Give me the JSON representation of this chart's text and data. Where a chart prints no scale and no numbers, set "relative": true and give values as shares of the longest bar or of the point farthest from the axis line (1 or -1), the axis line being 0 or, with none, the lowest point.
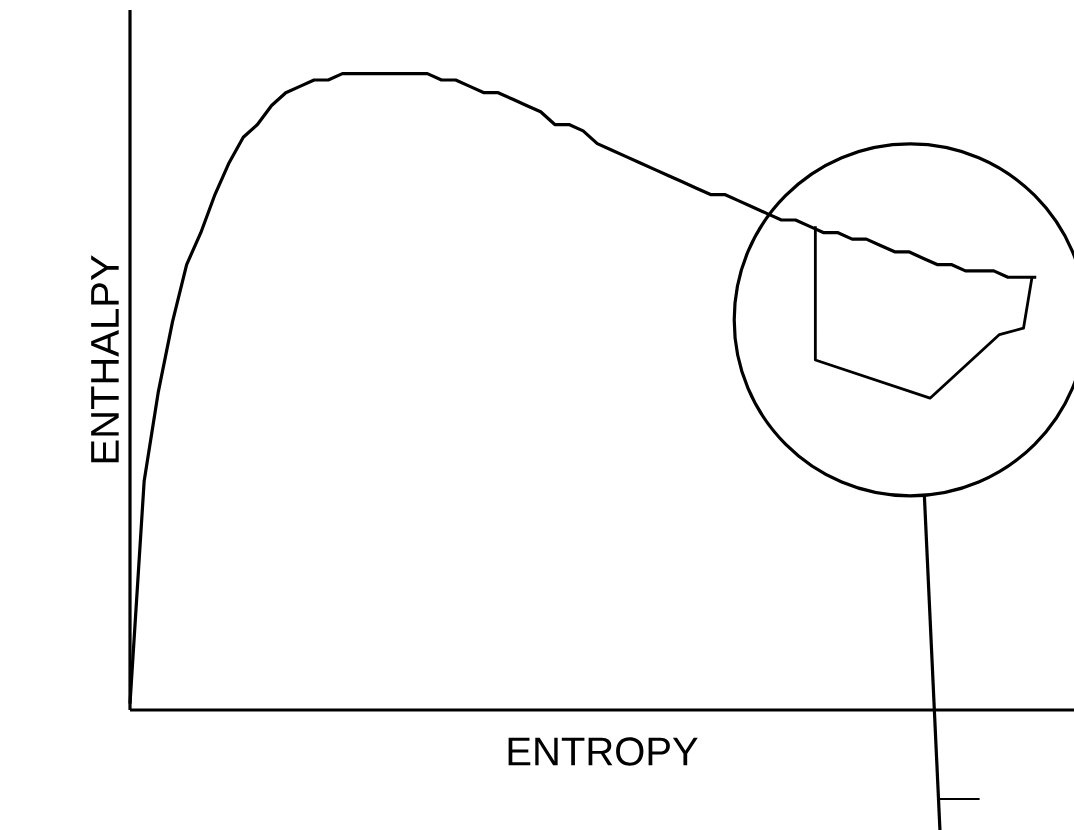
{
  "chart_data": {
    "type": "line",
    "relative": true,
    "xlabel": "ENTROPY",
    "ylabel": "ENTHALPY",
    "categories": [
      null,
      null,
      null,
      null,
      null,
      null,
      null,
      null,
      null,
      null,
      null,
      null,
      null,
      null,
      null,
      null,
      null,
      null,
      null,
      null,
      null,
      null,
      null,
      null,
      null,
      null,
      null,
      null,
      null,
      null,
      null,
      null,
      null,
      null,
      null,
      null,
      null,
      null,
      null,
      null,
      null,
      null,
      null,
      null,
      null,
      null,
      null,
      null,
      null,
      null,
      null,
      null,
      null,
      null,
      null,
      null,
      null,
      null,
      null,
      null,
      null,
      null,
      null,
      null,
      null
    ],
    "series": [
      {
        "color": "#000000",
        "values": [
          0.01,
          0.36,
          0.5,
          0.61,
          0.7,
          0.75,
          0.81,
          0.86,
          0.9,
          0.92,
          0.95,
          0.97,
          0.98,
          0.99,
          0.99,
          1.0,
          1.0,
          1.0,
          1.0,
          1.0,
          1.0,
          1.0,
          0.99,
          0.99,
          0.98,
          0.97,
          0.97,
          0.96,
          0.95,
          0.94,
          0.92,
          0.92,
          0.91,
          0.89,
          0.88,
          0.87,
          0.86,
          0.85,
          0.84,
          0.83,
          0.82,
          0.81,
          0.81,
          0.8,
          0.79,
          0.78,
          0.77,
          0.77,
          0.76,
          0.75,
          0.75,
          0.74,
          0.74,
          0.73,
          0.72,
          0.72,
          0.71,
          0.7,
          0.7,
          0.69,
          0.69,
          0.69,
          0.68,
          0.68,
          0.68
        ]
      }
    ]
  }
}
